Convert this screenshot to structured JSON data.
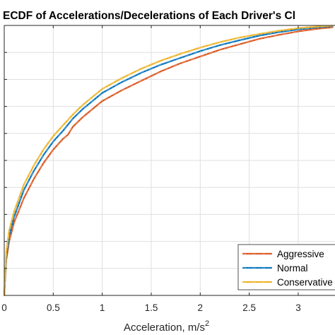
{
  "chart_data": {
    "type": "line",
    "title": "ECDF of Accelerations/Decelerations of Each Driver's Cl",
    "xlabel": "Acceleration, m/s",
    "xlabel_superscript": "2",
    "ylabel": "",
    "xlim": [
      0,
      3.35
    ],
    "ylim": [
      0,
      1
    ],
    "x_ticks": [
      0,
      0.5,
      1,
      1.5,
      2,
      2.5,
      3
    ],
    "x_tick_labels": [
      "0",
      "0.5",
      "1",
      "1.5",
      "2",
      "2.5",
      "3"
    ],
    "y_ticks": [
      0,
      0.1,
      0.2,
      0.3,
      0.4,
      0.5,
      0.6,
      0.7,
      0.8,
      0.9,
      1
    ],
    "grid": true,
    "legend_position": "bottom-right",
    "series": [
      {
        "name": "Aggressive",
        "color": "#D95319",
        "x": [
          0,
          0.02,
          0.05,
          0.1,
          0.2,
          0.3,
          0.4,
          0.5,
          0.6,
          0.65,
          0.7,
          0.8,
          0.9,
          1.0,
          1.2,
          1.4,
          1.6,
          1.8,
          2.0,
          2.2,
          2.4,
          2.6,
          2.8,
          3.0,
          3.2,
          3.35
        ],
        "y": [
          0,
          0.13,
          0.2,
          0.27,
          0.36,
          0.43,
          0.49,
          0.54,
          0.58,
          0.595,
          0.625,
          0.66,
          0.69,
          0.72,
          0.76,
          0.795,
          0.83,
          0.86,
          0.885,
          0.91,
          0.93,
          0.95,
          0.965,
          0.978,
          0.988,
          0.993
        ]
      },
      {
        "name": "Normal",
        "color": "#0072BD",
        "x": [
          0,
          0.02,
          0.05,
          0.1,
          0.2,
          0.3,
          0.4,
          0.5,
          0.6,
          0.7,
          0.8,
          0.9,
          1.0,
          1.2,
          1.4,
          1.6,
          1.8,
          2.0,
          2.2,
          2.4,
          2.6,
          2.8,
          3.0,
          3.2,
          3.35
        ],
        "y": [
          0,
          0.14,
          0.22,
          0.29,
          0.39,
          0.46,
          0.52,
          0.57,
          0.61,
          0.655,
          0.69,
          0.72,
          0.75,
          0.79,
          0.825,
          0.855,
          0.88,
          0.905,
          0.927,
          0.945,
          0.962,
          0.975,
          0.985,
          0.993,
          0.997
        ]
      },
      {
        "name": "Conservative",
        "color": "#EDB120",
        "x": [
          0,
          0.02,
          0.05,
          0.1,
          0.2,
          0.3,
          0.4,
          0.5,
          0.6,
          0.7,
          0.8,
          0.9,
          1.0,
          1.2,
          1.4,
          1.6,
          1.8,
          2.0,
          2.2,
          2.4,
          2.6,
          2.8,
          3.0,
          3.2,
          3.35
        ],
        "y": [
          0,
          0.16,
          0.24,
          0.31,
          0.41,
          0.48,
          0.54,
          0.59,
          0.63,
          0.67,
          0.705,
          0.735,
          0.765,
          0.805,
          0.84,
          0.87,
          0.895,
          0.918,
          0.938,
          0.955,
          0.968,
          0.98,
          0.99,
          0.996,
          0.999
        ]
      }
    ]
  }
}
